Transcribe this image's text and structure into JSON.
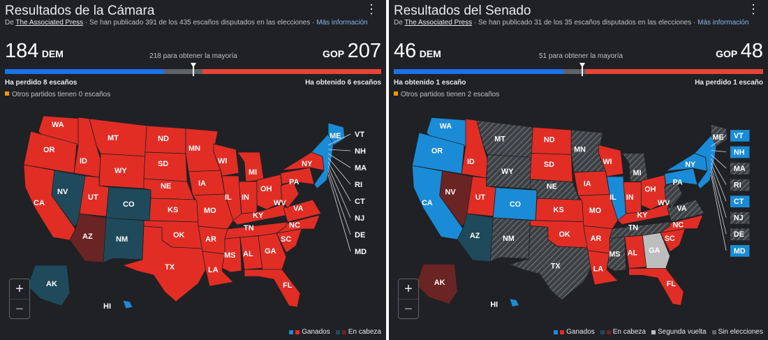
{
  "colors": {
    "bg": "#202124",
    "dem": "#1a73e8",
    "rep": "#ea4335",
    "dem_won": "#1a8bd6",
    "rep_won": "#e22d25",
    "dem_lead": "#1f4a5c",
    "rep_lead": "#6b2424",
    "uncalled": "#3c4043",
    "runoff": "#bdbdbd",
    "no_election": "#5f6368",
    "accent": "#8ab4f8",
    "others": "#f29900"
  },
  "house": {
    "title": "Resultados de la Cámara",
    "source_prefix": "De",
    "source_name": "The Associated Press",
    "source_text": "· Se han publicado 391 de los 435 escaños disputados en las elecciones ·",
    "more_info": "Más información",
    "dem_seats": "184",
    "dem_label": "DEM",
    "gop_label": "GOP",
    "gop_seats": "207",
    "majority_text": "218 para obtener la mayoría",
    "total": 435,
    "majority": 218,
    "dem_change": "Ha perdido 8 escaños",
    "gop_change": "Ha obtenido 6 escaños",
    "others_text": "Otros partidos tienen 0 escaños",
    "legend": [
      {
        "label": "Ganados",
        "colors": [
          "#1a8bd6",
          "#e22d25"
        ]
      },
      {
        "label": "En cabeza",
        "colors": [
          "#1f4a5c",
          "#6b2424"
        ]
      }
    ],
    "zoom_in": "+",
    "zoom_out": "−"
  },
  "senate": {
    "title": "Resultados del Senado",
    "source_prefix": "De",
    "source_name": "The Associated Press",
    "source_text": "· Se han publicado 31 de los 35 escaños disputados en las elecciones ·",
    "more_info": "Más información",
    "dem_seats": "46",
    "dem_label": "DEM",
    "gop_label": "GOP",
    "gop_seats": "48",
    "majority_text": "51 para obtener la mayoría",
    "total": 100,
    "majority": 51,
    "dem_change": "Ha obtenido 1 escaño",
    "gop_change": "Ha perdido 1 escaño",
    "others_text": "Otros partidos tienen 2 escaños",
    "legend": [
      {
        "label": "Ganados",
        "colors": [
          "#1a8bd6",
          "#e22d25"
        ]
      },
      {
        "label": "En cabeza",
        "colors": [
          "#1f4a5c",
          "#6b2424"
        ]
      },
      {
        "label": "Segunda vuelta",
        "colors": [
          "#bdbdbd"
        ]
      },
      {
        "label": "Sin elecciones",
        "colors": [
          "#5f6368"
        ]
      }
    ],
    "zoom_in": "+",
    "zoom_out": "−"
  },
  "states": {
    "house": {
      "WA": "rep_won",
      "OR": "rep_won",
      "CA": "rep_won",
      "NV": "dem_lead",
      "ID": "rep_won",
      "MT": "rep_won",
      "WY": "rep_won",
      "UT": "rep_won",
      "CO": "dem_lead",
      "AZ": "rep_lead",
      "NM": "dem_lead",
      "ND": "rep_won",
      "SD": "rep_won",
      "NE": "rep_won",
      "KS": "rep_won",
      "OK": "rep_won",
      "TX": "rep_won",
      "MN": "rep_won",
      "IA": "rep_won",
      "MO": "rep_won",
      "AR": "rep_won",
      "LA": "rep_won",
      "WI": "rep_won",
      "IL": "rep_won",
      "MI": "rep_won",
      "IN": "rep_won",
      "OH": "rep_won",
      "KY": "rep_won",
      "TN": "rep_won",
      "MS": "rep_won",
      "AL": "rep_won",
      "GA": "rep_won",
      "FL": "rep_won",
      "SC": "rep_won",
      "NC": "rep_won",
      "VA": "rep_won",
      "WV": "rep_won",
      "PA": "rep_won",
      "NY": "rep_won",
      "ME": "dem_won",
      "NE_STATES": "dem_won",
      "AK": "dem_lead",
      "HI": "dem_won"
    },
    "senate": {
      "WA": "dem_won",
      "OR": "dem_won",
      "CA": "dem_won",
      "NV": "rep_lead",
      "ID": "rep_won",
      "MT": "no_election",
      "WY": "no_election",
      "UT": "rep_won",
      "CO": "dem_won",
      "AZ": "dem_lead",
      "NM": "no_election",
      "ND": "rep_won",
      "SD": "rep_won",
      "NE": "no_election",
      "KS": "rep_won",
      "OK": "rep_won",
      "TX": "no_election",
      "MN": "no_election",
      "IA": "rep_won",
      "MO": "rep_won",
      "AR": "rep_won",
      "LA": "rep_won",
      "WI": "rep_won",
      "IL": "dem_won",
      "MI": "no_election",
      "IN": "rep_won",
      "OH": "rep_won",
      "KY": "rep_won",
      "TN": "no_election",
      "MS": "no_election",
      "AL": "rep_won",
      "GA": "runoff",
      "FL": "rep_won",
      "SC": "rep_won",
      "NC": "rep_won",
      "VA": "no_election",
      "WV": "no_election",
      "PA": "dem_won",
      "NY": "dem_won",
      "ME": "no_election",
      "NE_STATES": "dem_won",
      "AK": "rep_lead",
      "HI": "dem_won"
    }
  },
  "callouts": {
    "house": [
      "VT",
      "NH",
      "MA",
      "RI",
      "CT",
      "NJ",
      "DE",
      "MD"
    ],
    "senate": [
      {
        "code": "VT",
        "status": "dem_won"
      },
      {
        "code": "NH",
        "status": "dem_won"
      },
      {
        "code": "MA",
        "status": "no_election"
      },
      {
        "code": "RI",
        "status": "no_election"
      },
      {
        "code": "CT",
        "status": "dem_won"
      },
      {
        "code": "NJ",
        "status": "no_election"
      },
      {
        "code": "DE",
        "status": "no_election"
      },
      {
        "code": "MD",
        "status": "dem_won"
      }
    ]
  }
}
